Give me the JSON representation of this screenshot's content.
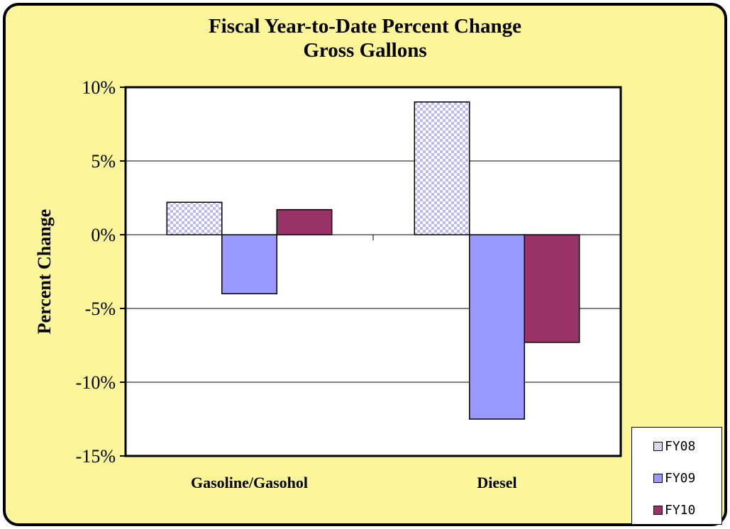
{
  "chart_data": {
    "type": "bar",
    "title": "Fiscal Year-to-Date Percent Change",
    "subtitle": "Gross Gallons",
    "xlabel": "",
    "ylabel": "Percent Change",
    "categories": [
      "Gasoline/Gasohol",
      "Diesel"
    ],
    "series": [
      {
        "name": "FY08",
        "values": [
          2.2,
          9.0
        ],
        "color": "#c9c9f5",
        "pattern": "checkerboard"
      },
      {
        "name": "FY09",
        "values": [
          -4.0,
          -12.5
        ],
        "color": "#9999ff",
        "pattern": "solid"
      },
      {
        "name": "FY10",
        "values": [
          1.7,
          -7.3
        ],
        "color": "#993366",
        "pattern": "solid"
      }
    ],
    "ylim": [
      -15,
      10
    ],
    "yticks": [
      10,
      5,
      0,
      -5,
      -10,
      -15
    ],
    "ytick_labels": [
      "10%",
      "5%",
      "0%",
      "-5%",
      "-10%",
      "-15%"
    ],
    "grid": true,
    "legend_position": "bottom-right",
    "background": "#fdf59a",
    "plot_background": "#ffffff"
  }
}
